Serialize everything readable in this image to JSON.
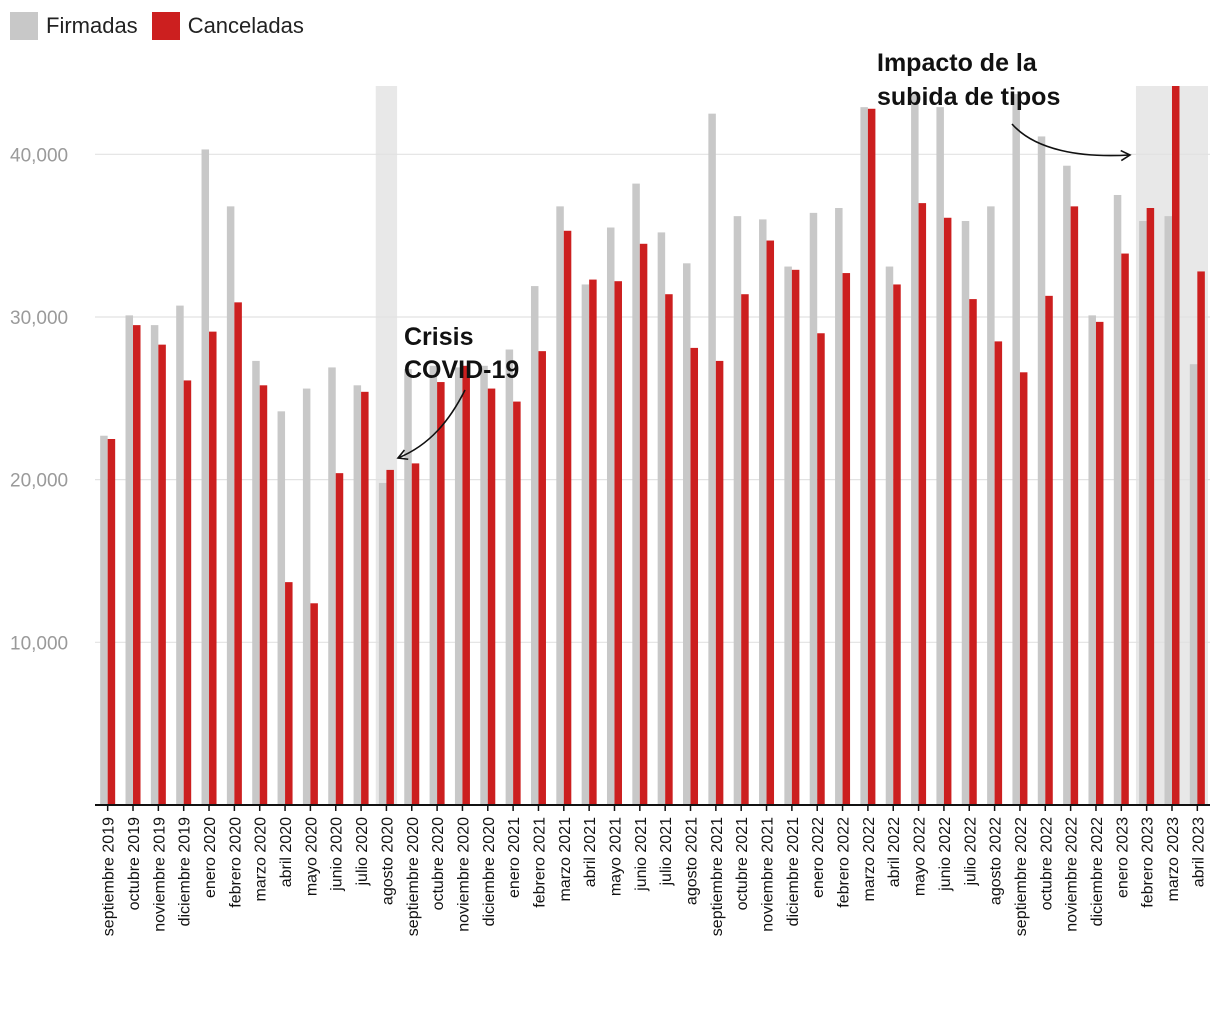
{
  "legend": {
    "items": [
      {
        "label": "Firmadas",
        "color": "#c8c8c8"
      },
      {
        "label": "Canceladas",
        "color": "#cc1f1f"
      }
    ]
  },
  "annotations": {
    "covid": {
      "lines": [
        "Crisis",
        "COVID-19"
      ]
    },
    "rates": {
      "lines": [
        "Impacto de la",
        "subida de tipos"
      ]
    }
  },
  "chart_data": {
    "type": "bar",
    "title": "",
    "xlabel": "",
    "ylabel": "",
    "ylim": [
      0,
      44200
    ],
    "yticks": [
      {
        "value": 10000,
        "label": "10,000"
      },
      {
        "value": 20000,
        "label": "20,000"
      },
      {
        "value": 30000,
        "label": "30,000"
      },
      {
        "value": 40000,
        "label": "40,000"
      }
    ],
    "grid": true,
    "legend_position": "top-left",
    "highlights": [
      {
        "from": "agosto 2020",
        "to": "agosto 2020",
        "color": "#e8e8e8"
      },
      {
        "from": "febrero 2023",
        "to": "abril 2023",
        "color": "#e8e8e8"
      }
    ],
    "categories": [
      "septiembre 2019",
      "octubre 2019",
      "noviembre 2019",
      "diciembre 2019",
      "enero 2020",
      "febrero 2020",
      "marzo 2020",
      "abril 2020",
      "mayo 2020",
      "junio 2020",
      "julio 2020",
      "agosto 2020",
      "septiembre 2020",
      "octubre 2020",
      "noviembre 2020",
      "diciembre 2020",
      "enero 2021",
      "febrero 2021",
      "marzo 2021",
      "abril 2021",
      "mayo 2021",
      "junio 2021",
      "julio 2021",
      "agosto 2021",
      "septiembre 2021",
      "octubre 2021",
      "noviembre 2021",
      "diciembre 2021",
      "enero 2022",
      "febrero 2022",
      "marzo 2022",
      "abril 2022",
      "mayo 2022",
      "junio 2022",
      "julio 2022",
      "agosto 2022",
      "septiembre 2022",
      "octubre 2022",
      "noviembre 2022",
      "diciembre 2022",
      "enero 2023",
      "febrero 2023",
      "marzo 2023",
      "abril 2023"
    ],
    "series": [
      {
        "name": "Firmadas",
        "color": "#c8c8c8",
        "values": [
          22700,
          30100,
          29500,
          30700,
          40300,
          36800,
          27300,
          24200,
          25600,
          26900,
          25800,
          19800,
          26800,
          27000,
          26900,
          27000,
          28000,
          31900,
          36800,
          32000,
          35500,
          38200,
          35200,
          33300,
          42500,
          36200,
          36000,
          33100,
          36400,
          36700,
          42900,
          33100,
          43700,
          42900,
          35900,
          36800,
          43700,
          41100,
          39300,
          30100,
          37500,
          35900,
          36200,
          27100
        ]
      },
      {
        "name": "Canceladas",
        "color": "#cc1f1f",
        "values": [
          22500,
          29500,
          28300,
          26100,
          29100,
          30900,
          25800,
          13700,
          12400,
          20400,
          25400,
          20600,
          21000,
          26000,
          27000,
          25600,
          24800,
          27900,
          35300,
          32300,
          32200,
          34500,
          31400,
          28100,
          27300,
          31400,
          34700,
          32900,
          29000,
          32700,
          42800,
          32000,
          37000,
          36100,
          31100,
          28500,
          26600,
          31300,
          36800,
          29700,
          33900,
          36700,
          44200,
          32800
        ]
      }
    ]
  }
}
